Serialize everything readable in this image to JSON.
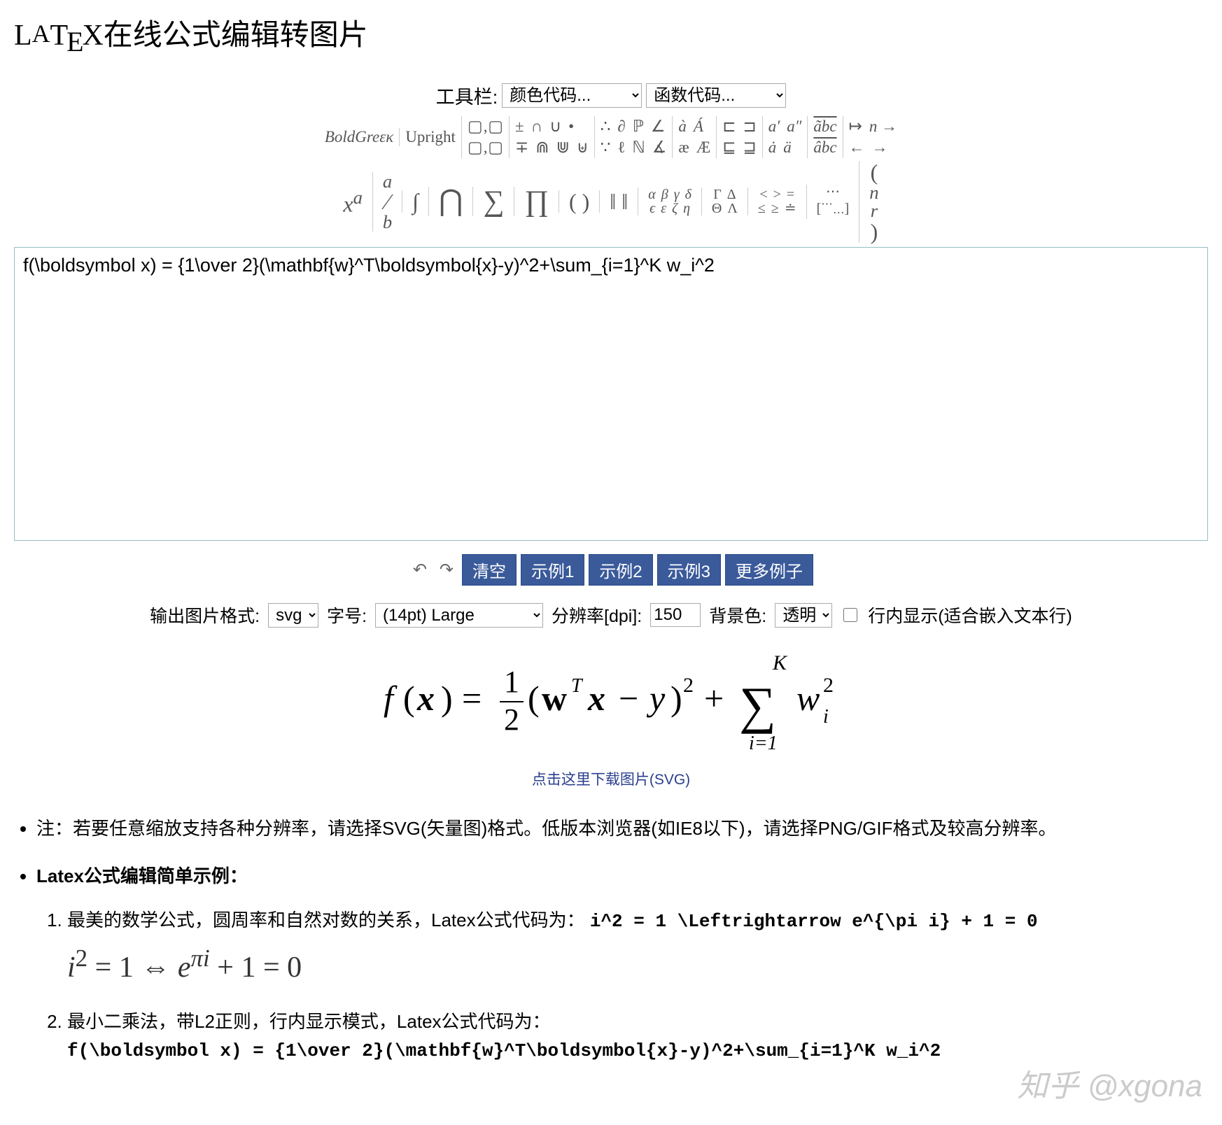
{
  "title_html": "L<span class='latex-a'>A</span>T<span class='latex-e'>E</span>X在线公式编辑转图片",
  "toolbar": {
    "label": "工具栏:",
    "select1": "颜色代码...",
    "select2": "函数代码..."
  },
  "palette1": {
    "boldgreek_html": "<i>BoldGreεκ</i>",
    "upright": "Upright",
    "boxes_top": "▢‚▢",
    "boxes_bot": "▢‚▢",
    "ops_top": [
      "±",
      "∩",
      "∪",
      "•"
    ],
    "ops_bot": [
      "∓",
      "⋒",
      "⋓",
      "⊎"
    ],
    "misc_top": [
      "∴",
      "∂",
      "ℙ",
      "∠"
    ],
    "misc_bot": [
      "∵",
      "ℓ",
      "ℕ",
      "∡"
    ],
    "acc_top_html": [
      "<i>à</i>",
      "<i>Á</i>"
    ],
    "acc_bot": [
      "æ",
      "Æ"
    ],
    "rel_top": [
      "⊏",
      "⊐"
    ],
    "rel_bot": [
      "⊑",
      "⊒"
    ],
    "prime_top_html": [
      "<i>a′</i>",
      "<i>a″</i>"
    ],
    "prime_bot_html": [
      "<i>ȧ</i>",
      "<i>ä</i>"
    ],
    "tilde_top_html": "<i>ãbc</i>",
    "tilde_bot_html": "<i>âbc</i>",
    "arr_top": [
      "↦",
      "n →"
    ],
    "arr_bot": [
      "←",
      "→"
    ]
  },
  "palette2": {
    "xa_html": "<i>x<sup>a</sup></i>",
    "frac_html": "<sup><i>a</i></sup>⁄<sub><i>b</i></sub>",
    "integral": "∫",
    "bigcap": "⋂",
    "sum": "∑",
    "prod": "∏",
    "paren": "( )",
    "norm": "‖ ‖",
    "greek_top": [
      "α",
      "β",
      "γ",
      "δ"
    ],
    "greek_bot": [
      "ϵ",
      "ε",
      "ζ",
      "η"
    ],
    "greek2_top": [
      "Γ",
      "Δ"
    ],
    "greek2_bot": [
      "Θ",
      "Λ"
    ],
    "rel2_top": [
      "<",
      ">",
      "="
    ],
    "rel2_bot": [
      "≤",
      "≥",
      "≐"
    ],
    "dots_top": "⋯",
    "dots_bot_html": "[<sup>⋯</sup><sub>⋯</sub>]",
    "binom_html": "(<sup><i>n</i></sup><sub><i>r</i></sub>)"
  },
  "editor": {
    "value": "f(\\boldsymbol x) = {1\\over 2}(\\mathbf{w}^T\\boldsymbol{x}-y)^2+\\sum_{i=1}^K w_i^2"
  },
  "controls": {
    "undo": "↶",
    "redo": "↷",
    "clear": "清空",
    "ex1": "示例1",
    "ex2": "示例2",
    "ex3": "示例3",
    "more": "更多例子"
  },
  "settings": {
    "format_label": "输出图片格式:",
    "format_value": "svg",
    "fontsize_label": "字号:",
    "fontsize_value": "(14pt) Large",
    "dpi_label": "分辨率[dpi]:",
    "dpi_value": "150",
    "bg_label": "背景色:",
    "bg_value": "透明",
    "inline_label": "行内显示(适合嵌入文本行)"
  },
  "download": "点击这里下载图片(SVG)",
  "notes": {
    "n1": "注：若要任意缩放支持各种分辨率，请选择SVG(矢量图)格式。低版本浏览器(如IE8以下)，请选择PNG/GIF格式及较高分辨率。",
    "n2_head": "Latex公式编辑简单示例：",
    "ex1_text": "最美的数学公式，圆周率和自然对数的关系，Latex公式代码为：",
    "ex1_code": "i^2 = 1 \\Leftrightarrow e^{\\pi i} + 1 = 0",
    "ex1_render_html": "<i>i</i><sup>2</sup> = 1 ⇔ <i>e</i><sup><i>πi</i></sup> + 1 = 0",
    "ex2_text": "最小二乘法，带L2正则，行内显示模式，Latex公式代码为：",
    "ex2_code": "f(\\boldsymbol x) = {1\\over 2}(\\mathbf{w}^T\\boldsymbol{x}-y)^2+\\sum_{i=1}^K w_i^2"
  },
  "watermark": "知乎 @xgona"
}
